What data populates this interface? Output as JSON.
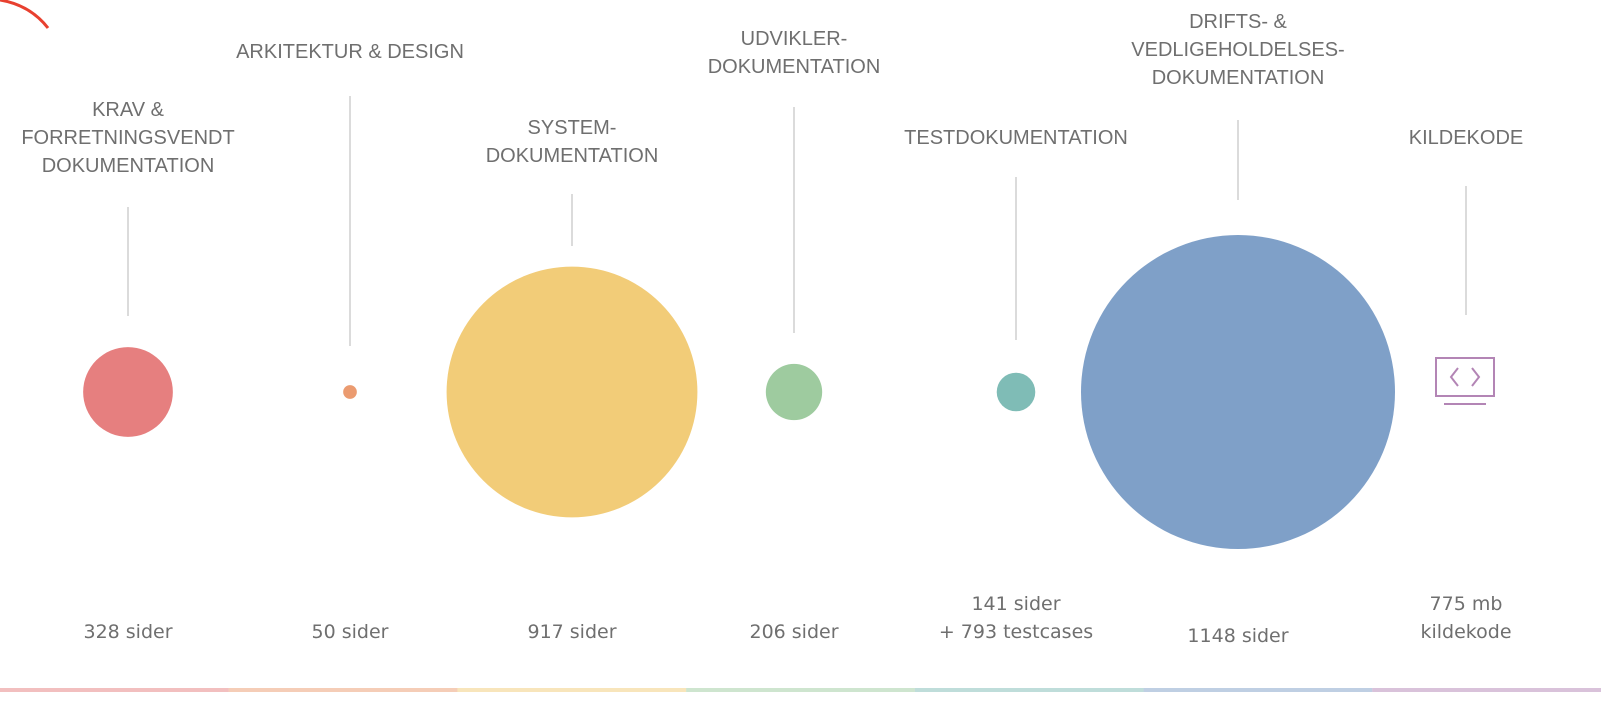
{
  "chart_data": {
    "type": "bubble",
    "categories": [
      "KRAV &\nFORRETNINGSVENDT\nDOKUMENTATION",
      "ARKITEKTUR & DESIGN",
      "SYSTEM-\nDOKUMENTATION",
      "UDVIKLER-\nDOKUMENTATION",
      "TESTDOKUMENTATION",
      "DRIFTS- &\nVEDLIGEHOLDELSES-\nDOKUMENTATION",
      "KILDEKODE"
    ],
    "values": [
      328,
      50,
      917,
      206,
      141,
      1148,
      null
    ],
    "value_labels": [
      "328 sider",
      "50 sider",
      "917 sider",
      "206 sider",
      "141 sider\n+ 793 testcases",
      "1148 sider",
      "775 mb\nkildekode"
    ],
    "colors": [
      "#e67f7f",
      "#eb9b70",
      "#f2cc78",
      "#9ecb9f",
      "#7fbcb6",
      "#7fa0c8",
      "#b385b5"
    ]
  }
}
